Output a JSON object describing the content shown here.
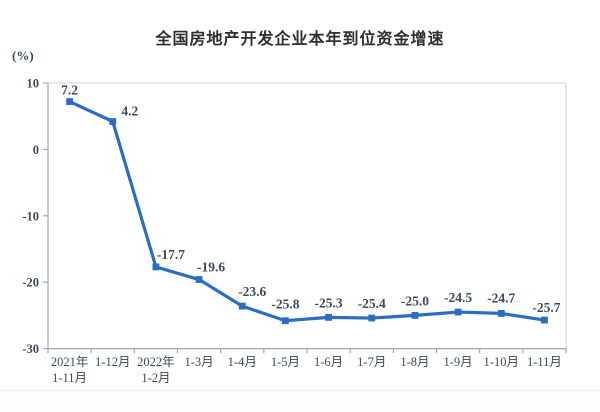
{
  "chart_data": {
    "type": "line",
    "title": "全国房地产开发企业本年到位资金增速",
    "unit": "(%)",
    "categories": [
      "2021年\n1-11月",
      "1-12月",
      "2022年\n1-2月",
      "1-3月",
      "1-4月",
      "1-5月",
      "1-6月",
      "1-7月",
      "1-8月",
      "1-9月",
      "1-10月",
      "1-11月"
    ],
    "values": [
      7.2,
      4.2,
      -17.7,
      -19.6,
      -23.6,
      -25.8,
      -25.3,
      -25.4,
      -25.0,
      -24.5,
      -24.7,
      -25.7
    ],
    "data_labels": [
      "7.2",
      "4.2",
      "-17.7",
      "-19.6",
      "-23.6",
      "-25.8",
      "-25.3",
      "-25.4",
      "-25.0",
      "-24.5",
      "-24.7",
      "-25.7"
    ],
    "xlabel": "",
    "ylabel": "(%)",
    "ylim": [
      -30,
      10
    ],
    "yticks": [
      10,
      0,
      -10,
      -20,
      -30
    ],
    "grid": false,
    "legend": "none",
    "marker": "square",
    "colors": {
      "line": "#2B6CC4",
      "label": "#3D4A5C",
      "axis": "#A6A6A6",
      "border": "#DADADA",
      "title": "#2E2E2E"
    }
  }
}
